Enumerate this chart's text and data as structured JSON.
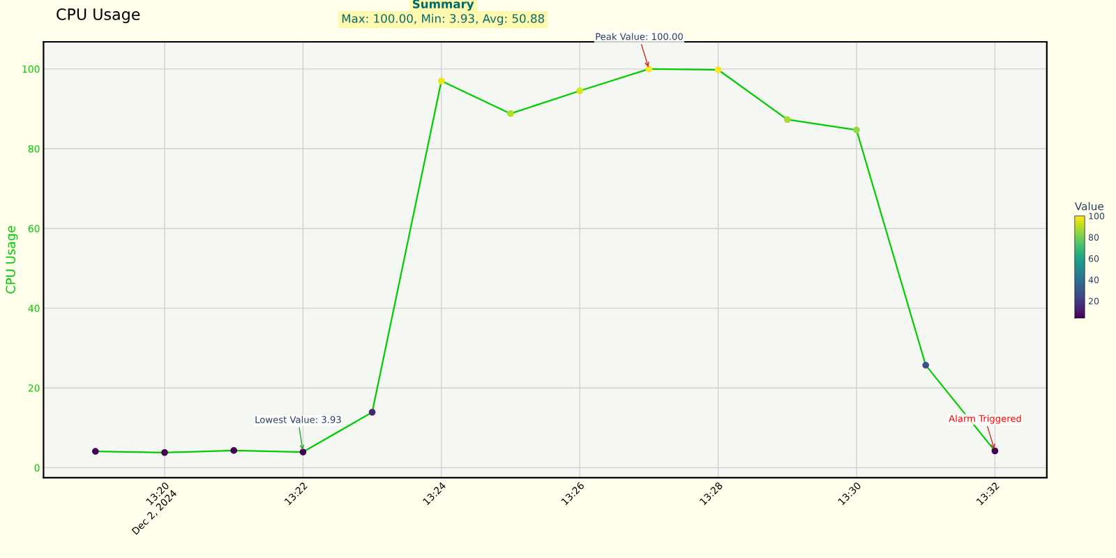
{
  "chart_data": {
    "type": "line",
    "title": "CPU Usage",
    "ylabel": "CPU Usage",
    "clabel": "Value",
    "x": [
      "2024-12-02T13:19",
      "2024-12-02T13:20",
      "2024-12-02T13:21",
      "2024-12-02T13:22",
      "2024-12-02T13:23",
      "2024-12-02T13:24",
      "2024-12-02T13:25",
      "2024-12-02T13:26",
      "2024-12-02T13:27",
      "2024-12-02T13:28",
      "2024-12-02T13:29",
      "2024-12-02T13:30",
      "2024-12-02T13:31",
      "2024-12-02T13:32"
    ],
    "series": [
      {
        "color": "#00cc00",
        "values": [
          4.1,
          3.8,
          4.3,
          3.93,
          13.9,
          97.0,
          88.8,
          94.5,
          100.0,
          99.8,
          87.3,
          84.7,
          25.7,
          4.2
        ]
      }
    ],
    "clim": [
      3.93,
      100
    ],
    "cticks": [
      20,
      40,
      60,
      80,
      100
    ],
    "xlim": [
      "2024-12-02T13:18:15",
      "2024-12-02T13:32:45"
    ],
    "xticks": [
      {
        "value": "2024-12-02T13:20",
        "label": "13:20\nDec 2, 2024"
      },
      {
        "value": "2024-12-02T13:22",
        "label": "13:22"
      },
      {
        "value": "2024-12-02T13:24",
        "label": "13:24"
      },
      {
        "value": "2024-12-02T13:26",
        "label": "13:26"
      },
      {
        "value": "2024-12-02T13:28",
        "label": "13:28"
      },
      {
        "value": "2024-12-02T13:30",
        "label": "13:30"
      },
      {
        "value": "2024-12-02T13:32",
        "label": "13:32"
      }
    ],
    "ylim": [
      -2.5,
      106.8
    ],
    "yticks": [
      0,
      20,
      40,
      60,
      80,
      100
    ],
    "annotations": [
      "Summary",
      "Max: 100.00, Min: 3.93, Avg: 50.88",
      {
        "text": "Peak Value: 100.00",
        "x": "2024-12-02T13:27",
        "y": 100.0
      },
      {
        "text": "Lowest Value: 3.93",
        "x": "2024-12-02T13:22",
        "y": 3.93
      },
      {
        "text": "Alarm Triggered",
        "x": "2024-12-02T13:32",
        "y": 4.2
      }
    ],
    "grid": true,
    "marker": "circle",
    "line_style": "solid"
  }
}
